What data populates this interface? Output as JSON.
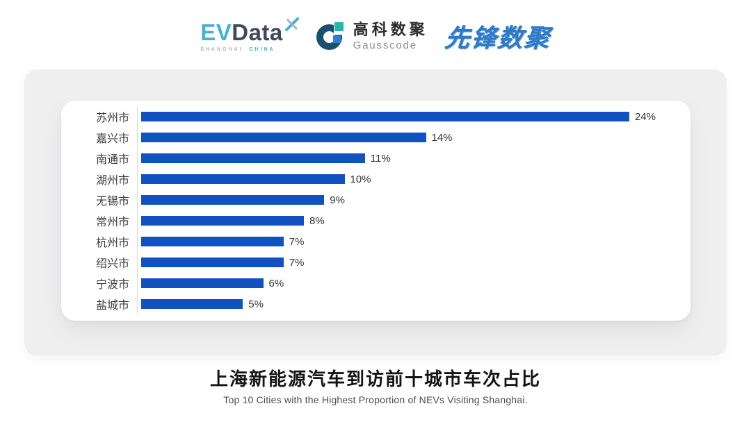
{
  "header": {
    "evdata": {
      "ev": "EV",
      "data": "Data",
      "sub_left": "SHANGHAI",
      "sub_right": "CHINA"
    },
    "gausscode": {
      "cn": "高科数聚",
      "en": "Gausscode"
    },
    "xianfeng": {
      "text": "先锋数聚"
    }
  },
  "icons": {
    "evdata-x-icon": "pinwheel-x cyan/gray cross",
    "gausscode-g-icon": "dark navy G ring with teal and blue squares"
  },
  "colors": {
    "bar_blue": "#1151c2",
    "panel_gray": "#efeff0",
    "card_white": "#ffffff",
    "axis_line": "#d9d9d9",
    "evdata_cyan": "#41b3da",
    "evdata_slate": "#3e4a5c",
    "gauss_navy": "#1a4f70",
    "gauss_teal": "#28b3ab",
    "gauss_blue": "#2e7ed2",
    "xianfeng_blue": "#2e79c8"
  },
  "chart_data": {
    "type": "bar",
    "orientation": "horizontal",
    "title": "上海新能源汽车到访前十城市车次占比",
    "subtitle": "Top 10 Cities with the Highest Proportion of  NEVs Visiting Shanghai.",
    "categories": [
      "苏州市",
      "嘉兴市",
      "南通市",
      "湖州市",
      "无锡市",
      "常州市",
      "杭州市",
      "绍兴市",
      "宁波市",
      "盐城市"
    ],
    "values": [
      24,
      14,
      11,
      10,
      9,
      8,
      7,
      7,
      6,
      5
    ],
    "value_labels": [
      "24%",
      "14%",
      "11%",
      "10%",
      "9%",
      "8%",
      "7%",
      "7%",
      "6%",
      "5%"
    ],
    "unit": "%",
    "xmax": 24,
    "grid": false,
    "legend": false,
    "bar_color": "#1151c2"
  }
}
